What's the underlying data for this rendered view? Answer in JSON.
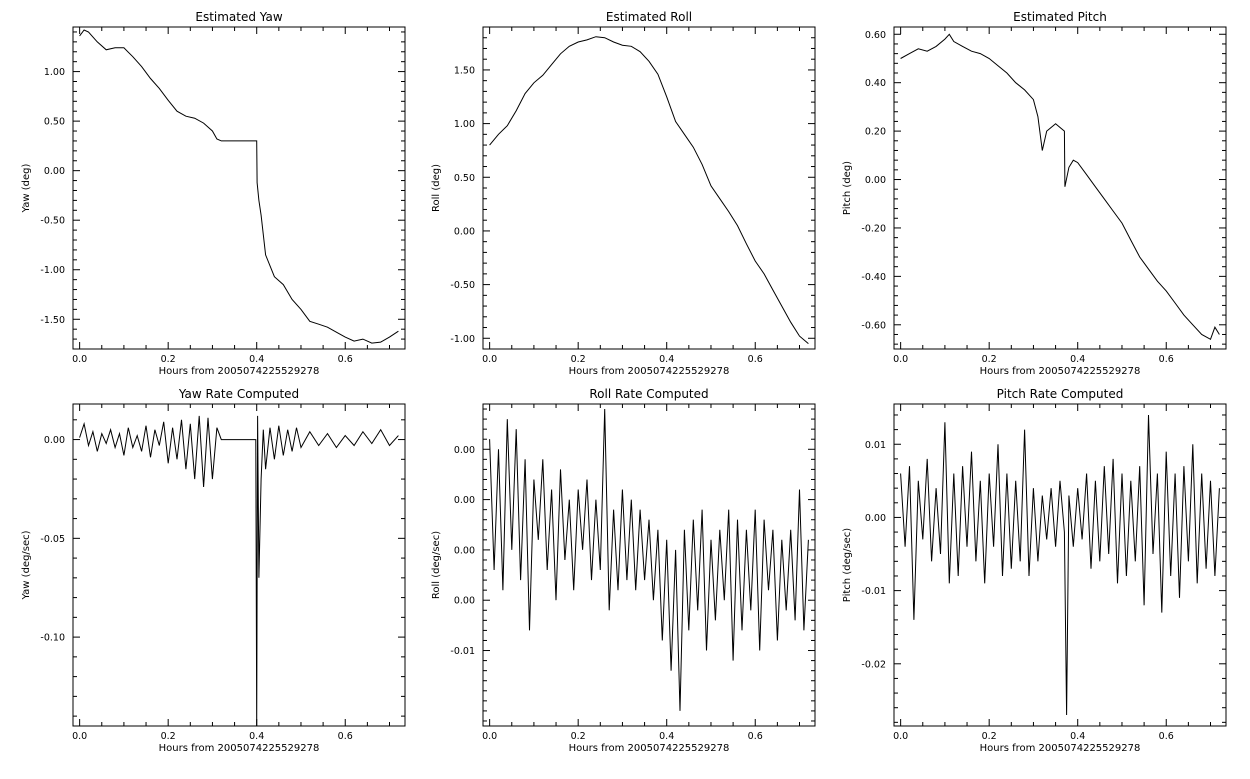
{
  "chart_data": [
    {
      "type": "line",
      "title": "Estimated Yaw",
      "xlabel": "Hours from 2005074225529278",
      "ylabel": "Yaw (deg)",
      "xlim": [
        -0.015,
        0.735
      ],
      "ylim": [
        -1.8,
        1.45
      ],
      "xticks": [
        0.0,
        0.2,
        0.4,
        0.6
      ],
      "xtick_labels": [
        "0.0",
        "0.2",
        "0.4",
        "0.6"
      ],
      "yticks": [
        1.0,
        0.5,
        0.0,
        -0.5,
        -1.0,
        -1.5
      ],
      "ytick_labels": [
        "1.00",
        "0.50",
        "0.00",
        "-0.50",
        "-1.00",
        "-1.50"
      ],
      "x": [
        0.0,
        0.01,
        0.02,
        0.04,
        0.06,
        0.08,
        0.1,
        0.12,
        0.14,
        0.16,
        0.18,
        0.2,
        0.22,
        0.24,
        0.26,
        0.28,
        0.3,
        0.31,
        0.32,
        0.35,
        0.4,
        0.401,
        0.405,
        0.41,
        0.42,
        0.44,
        0.46,
        0.48,
        0.5,
        0.52,
        0.54,
        0.56,
        0.58,
        0.6,
        0.62,
        0.64,
        0.66,
        0.68,
        0.7,
        0.72
      ],
      "values": [
        1.36,
        1.42,
        1.4,
        1.3,
        1.22,
        1.24,
        1.24,
        1.15,
        1.05,
        0.93,
        0.83,
        0.71,
        0.6,
        0.55,
        0.53,
        0.48,
        0.4,
        0.32,
        0.3,
        0.3,
        0.3,
        -0.12,
        -0.3,
        -0.45,
        -0.85,
        -1.07,
        -1.15,
        -1.3,
        -1.4,
        -1.52,
        -1.55,
        -1.58,
        -1.63,
        -1.68,
        -1.72,
        -1.7,
        -1.74,
        -1.73,
        -1.68,
        -1.62
      ],
      "grid": false
    },
    {
      "type": "line",
      "title": "Estimated Roll",
      "xlabel": "Hours from 2005074225529278",
      "ylabel": "Roll (deg)",
      "xlim": [
        -0.015,
        0.735
      ],
      "ylim": [
        -1.1,
        1.9
      ],
      "xticks": [
        0.0,
        0.2,
        0.4,
        0.6
      ],
      "xtick_labels": [
        "0.0",
        "0.2",
        "0.4",
        "0.6"
      ],
      "yticks": [
        1.5,
        1.0,
        0.5,
        0.0,
        -0.5,
        -1.0
      ],
      "ytick_labels": [
        "1.50",
        "1.00",
        "0.50",
        "0.00",
        "-0.50",
        "-1.00"
      ],
      "x": [
        0.0,
        0.02,
        0.04,
        0.06,
        0.08,
        0.1,
        0.12,
        0.14,
        0.16,
        0.18,
        0.2,
        0.22,
        0.24,
        0.26,
        0.28,
        0.3,
        0.32,
        0.34,
        0.36,
        0.38,
        0.4,
        0.42,
        0.44,
        0.46,
        0.48,
        0.5,
        0.52,
        0.54,
        0.56,
        0.58,
        0.6,
        0.62,
        0.64,
        0.66,
        0.68,
        0.7,
        0.72
      ],
      "values": [
        0.8,
        0.9,
        0.98,
        1.12,
        1.28,
        1.38,
        1.45,
        1.55,
        1.65,
        1.72,
        1.76,
        1.78,
        1.81,
        1.8,
        1.76,
        1.73,
        1.72,
        1.67,
        1.58,
        1.46,
        1.25,
        1.02,
        0.9,
        0.78,
        0.62,
        0.42,
        0.3,
        0.18,
        0.05,
        -0.12,
        -0.28,
        -0.4,
        -0.55,
        -0.7,
        -0.85,
        -0.98,
        -1.05
      ],
      "grid": false
    },
    {
      "type": "line",
      "title": "Estimated Pitch",
      "xlabel": "Hours from 2005074225529278",
      "ylabel": "Pitch (deg)",
      "xlim": [
        -0.015,
        0.735
      ],
      "ylim": [
        -0.7,
        0.63
      ],
      "xticks": [
        0.0,
        0.2,
        0.4,
        0.6
      ],
      "xtick_labels": [
        "0.0",
        "0.2",
        "0.4",
        "0.6"
      ],
      "yticks": [
        0.6,
        0.4,
        0.2,
        0.0,
        -0.2,
        -0.4,
        -0.6
      ],
      "ytick_labels": [
        "0.60",
        "0.40",
        "0.20",
        "0.00",
        "-0.20",
        "-0.40",
        "-0.60"
      ],
      "x": [
        0.0,
        0.02,
        0.04,
        0.06,
        0.08,
        0.1,
        0.11,
        0.12,
        0.14,
        0.16,
        0.18,
        0.2,
        0.22,
        0.24,
        0.26,
        0.28,
        0.3,
        0.31,
        0.32,
        0.33,
        0.35,
        0.37,
        0.371,
        0.38,
        0.39,
        0.4,
        0.42,
        0.44,
        0.46,
        0.48,
        0.5,
        0.52,
        0.54,
        0.56,
        0.58,
        0.6,
        0.62,
        0.64,
        0.66,
        0.68,
        0.7,
        0.71,
        0.72
      ],
      "values": [
        0.5,
        0.52,
        0.54,
        0.53,
        0.55,
        0.58,
        0.6,
        0.57,
        0.55,
        0.53,
        0.52,
        0.5,
        0.47,
        0.44,
        0.4,
        0.37,
        0.33,
        0.26,
        0.12,
        0.2,
        0.23,
        0.2,
        -0.03,
        0.05,
        0.08,
        0.07,
        0.02,
        -0.03,
        -0.08,
        -0.13,
        -0.18,
        -0.25,
        -0.32,
        -0.37,
        -0.42,
        -0.46,
        -0.51,
        -0.56,
        -0.6,
        -0.64,
        -0.66,
        -0.61,
        -0.64
      ],
      "grid": false
    },
    {
      "type": "line",
      "title": "Yaw Rate Computed",
      "xlabel": "Hours from 2005074225529278",
      "ylabel": "Yaw (deg/sec)",
      "xlim": [
        -0.015,
        0.735
      ],
      "ylim": [
        -0.145,
        0.018
      ],
      "xticks": [
        0.0,
        0.2,
        0.4,
        0.6
      ],
      "xtick_labels": [
        "0.0",
        "0.2",
        "0.4",
        "0.6"
      ],
      "yticks": [
        0.0,
        -0.05,
        -0.1
      ],
      "ytick_labels": [
        "0.00",
        "-0.05",
        "-0.10"
      ],
      "x": [
        0.0,
        0.01,
        0.02,
        0.03,
        0.04,
        0.05,
        0.06,
        0.07,
        0.08,
        0.09,
        0.1,
        0.11,
        0.12,
        0.13,
        0.14,
        0.15,
        0.16,
        0.17,
        0.18,
        0.19,
        0.2,
        0.21,
        0.22,
        0.23,
        0.24,
        0.25,
        0.26,
        0.27,
        0.28,
        0.29,
        0.3,
        0.31,
        0.32,
        0.36,
        0.398,
        0.4,
        0.402,
        0.405,
        0.41,
        0.415,
        0.42,
        0.43,
        0.44,
        0.45,
        0.46,
        0.47,
        0.48,
        0.49,
        0.5,
        0.52,
        0.54,
        0.56,
        0.58,
        0.6,
        0.62,
        0.64,
        0.66,
        0.68,
        0.7,
        0.72
      ],
      "values": [
        0.001,
        0.008,
        -0.003,
        0.004,
        -0.006,
        0.003,
        -0.002,
        0.005,
        -0.004,
        0.003,
        -0.008,
        0.006,
        -0.004,
        0.002,
        -0.006,
        0.007,
        -0.009,
        0.005,
        -0.003,
        0.009,
        -0.012,
        0.006,
        -0.01,
        0.01,
        -0.015,
        0.008,
        -0.02,
        0.012,
        -0.024,
        0.011,
        -0.02,
        0.006,
        0.0,
        0.0,
        0.0,
        -0.145,
        0.012,
        -0.07,
        -0.02,
        0.005,
        -0.015,
        0.006,
        -0.01,
        0.007,
        -0.008,
        0.005,
        -0.006,
        0.006,
        -0.004,
        0.004,
        -0.003,
        0.003,
        -0.004,
        0.002,
        -0.003,
        0.004,
        -0.002,
        0.005,
        -0.003,
        0.002
      ],
      "grid": false
    },
    {
      "type": "line",
      "title": "Roll Rate Computed",
      "xlabel": "Hours from 2005074225529278",
      "ylabel": "Roll (deg/sec)",
      "xlim": [
        -0.015,
        0.735
      ],
      "ylim": [
        -0.0175,
        0.0145
      ],
      "xticks": [
        0.0,
        0.2,
        0.4,
        0.6
      ],
      "xtick_labels": [
        "0.0",
        "0.2",
        "0.4",
        "0.6"
      ],
      "yticks": [
        0.01,
        0.005,
        0.0,
        -0.005,
        -0.01
      ],
      "ytick_labels": [
        "0.00",
        "0.00",
        "0.00",
        "0.00",
        "-0.01"
      ],
      "x": [
        0.0,
        0.01,
        0.02,
        0.03,
        0.04,
        0.05,
        0.06,
        0.07,
        0.08,
        0.09,
        0.1,
        0.11,
        0.12,
        0.13,
        0.14,
        0.15,
        0.16,
        0.17,
        0.18,
        0.19,
        0.2,
        0.21,
        0.22,
        0.23,
        0.24,
        0.25,
        0.26,
        0.27,
        0.28,
        0.29,
        0.3,
        0.31,
        0.32,
        0.33,
        0.34,
        0.35,
        0.36,
        0.37,
        0.38,
        0.39,
        0.4,
        0.41,
        0.42,
        0.43,
        0.44,
        0.45,
        0.46,
        0.47,
        0.48,
        0.49,
        0.5,
        0.51,
        0.52,
        0.53,
        0.54,
        0.55,
        0.56,
        0.57,
        0.58,
        0.59,
        0.6,
        0.61,
        0.62,
        0.63,
        0.64,
        0.65,
        0.66,
        0.67,
        0.68,
        0.69,
        0.7,
        0.71,
        0.72
      ],
      "values": [
        0.011,
        -0.002,
        0.01,
        -0.004,
        0.013,
        0.0,
        0.012,
        -0.003,
        0.009,
        -0.008,
        0.007,
        0.001,
        0.009,
        -0.002,
        0.006,
        -0.005,
        0.008,
        -0.001,
        0.005,
        -0.004,
        0.006,
        0.0,
        0.007,
        -0.003,
        0.005,
        -0.002,
        0.014,
        -0.006,
        0.004,
        -0.004,
        0.006,
        -0.003,
        0.005,
        -0.004,
        0.004,
        -0.003,
        0.003,
        -0.005,
        0.002,
        -0.009,
        0.001,
        -0.012,
        0.0,
        -0.016,
        0.002,
        -0.008,
        0.003,
        -0.006,
        0.004,
        -0.01,
        0.001,
        -0.007,
        0.002,
        -0.005,
        0.004,
        -0.011,
        0.003,
        -0.008,
        0.002,
        -0.006,
        0.004,
        -0.01,
        0.003,
        -0.004,
        0.002,
        -0.009,
        0.001,
        -0.006,
        0.002,
        -0.007,
        0.006,
        -0.008,
        0.001
      ],
      "grid": false
    },
    {
      "type": "line",
      "title": "Pitch Rate Computed",
      "xlabel": "Hours from 2005074225529278",
      "ylabel": "Pitch (deg/sec)",
      "xlim": [
        -0.015,
        0.735
      ],
      "ylim": [
        -0.0285,
        0.0155
      ],
      "xticks": [
        0.0,
        0.2,
        0.4,
        0.6
      ],
      "xtick_labels": [
        "0.0",
        "0.2",
        "0.4",
        "0.6"
      ],
      "yticks": [
        0.01,
        0.0,
        -0.01,
        -0.02
      ],
      "ytick_labels": [
        "0.01",
        "0.00",
        "-0.01",
        "-0.02"
      ],
      "x": [
        0.0,
        0.01,
        0.02,
        0.03,
        0.04,
        0.05,
        0.06,
        0.07,
        0.08,
        0.09,
        0.1,
        0.11,
        0.12,
        0.13,
        0.14,
        0.15,
        0.16,
        0.17,
        0.18,
        0.19,
        0.2,
        0.21,
        0.22,
        0.23,
        0.24,
        0.25,
        0.26,
        0.27,
        0.28,
        0.29,
        0.3,
        0.31,
        0.32,
        0.33,
        0.34,
        0.35,
        0.36,
        0.37,
        0.375,
        0.38,
        0.39,
        0.4,
        0.41,
        0.42,
        0.43,
        0.44,
        0.45,
        0.46,
        0.47,
        0.48,
        0.49,
        0.5,
        0.51,
        0.52,
        0.53,
        0.54,
        0.55,
        0.56,
        0.57,
        0.58,
        0.59,
        0.6,
        0.61,
        0.62,
        0.63,
        0.64,
        0.65,
        0.66,
        0.67,
        0.68,
        0.69,
        0.7,
        0.71,
        0.72
      ],
      "values": [
        0.006,
        -0.004,
        0.007,
        -0.014,
        0.005,
        -0.003,
        0.008,
        -0.006,
        0.004,
        -0.005,
        0.013,
        -0.009,
        0.006,
        -0.008,
        0.007,
        -0.004,
        0.009,
        -0.006,
        0.005,
        -0.009,
        0.006,
        -0.004,
        0.01,
        -0.008,
        0.006,
        -0.007,
        0.005,
        -0.006,
        0.012,
        -0.008,
        0.004,
        -0.006,
        0.003,
        -0.003,
        0.004,
        -0.004,
        0.005,
        -0.002,
        -0.027,
        0.003,
        -0.004,
        0.004,
        -0.003,
        0.006,
        -0.007,
        0.005,
        -0.006,
        0.007,
        -0.005,
        0.008,
        -0.009,
        0.006,
        -0.008,
        0.005,
        -0.006,
        0.007,
        -0.012,
        0.014,
        -0.005,
        0.006,
        -0.013,
        0.009,
        -0.008,
        0.006,
        -0.011,
        0.007,
        -0.006,
        0.01,
        -0.009,
        0.006,
        -0.007,
        0.005,
        -0.008,
        0.004
      ],
      "grid": false
    }
  ]
}
